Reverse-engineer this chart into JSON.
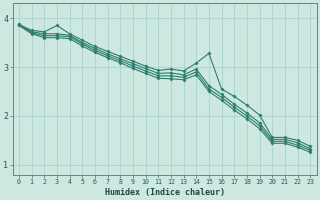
{
  "xlabel": "Humidex (Indice chaleur)",
  "xlim": [
    -0.5,
    23.5
  ],
  "ylim": [
    0.8,
    4.3
  ],
  "yticks": [
    1,
    2,
    3,
    4
  ],
  "xticks": [
    0,
    1,
    2,
    3,
    4,
    5,
    6,
    7,
    8,
    9,
    10,
    11,
    12,
    13,
    14,
    15,
    16,
    17,
    18,
    19,
    20,
    21,
    22,
    23
  ],
  "bg_color": "#cce8e0",
  "grid_color": "#aad4cc",
  "line_color": "#2e7d6e",
  "series": [
    [
      3.87,
      3.75,
      3.72,
      3.85,
      3.68,
      3.55,
      3.42,
      3.32,
      3.22,
      3.12,
      3.02,
      2.93,
      2.96,
      2.92,
      3.08,
      3.28,
      2.55,
      2.4,
      2.22,
      2.02,
      1.56,
      1.56,
      1.5,
      1.38
    ],
    [
      3.87,
      3.72,
      3.68,
      3.68,
      3.65,
      3.5,
      3.38,
      3.27,
      3.17,
      3.07,
      2.97,
      2.87,
      2.88,
      2.84,
      2.96,
      2.62,
      2.44,
      2.24,
      2.06,
      1.86,
      1.52,
      1.52,
      1.45,
      1.33
    ],
    [
      3.86,
      3.7,
      3.64,
      3.64,
      3.62,
      3.47,
      3.34,
      3.23,
      3.13,
      3.02,
      2.92,
      2.82,
      2.82,
      2.79,
      2.9,
      2.55,
      2.38,
      2.18,
      2.0,
      1.8,
      1.48,
      1.48,
      1.4,
      1.3
    ],
    [
      3.85,
      3.68,
      3.6,
      3.6,
      3.58,
      3.43,
      3.3,
      3.19,
      3.09,
      2.97,
      2.87,
      2.77,
      2.76,
      2.74,
      2.84,
      2.5,
      2.32,
      2.12,
      1.94,
      1.74,
      1.44,
      1.44,
      1.36,
      1.26
    ]
  ]
}
